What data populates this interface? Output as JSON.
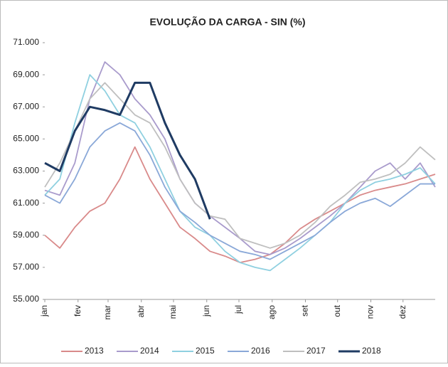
{
  "chart_data": {
    "type": "line",
    "title": "EVOLUÇÃO DA CARGA - SIN (%)",
    "x": [
      1,
      15,
      29,
      43,
      57,
      71,
      85,
      99,
      113,
      127,
      141,
      155,
      169,
      183,
      197,
      211,
      225,
      239,
      253,
      267,
      281,
      295,
      309,
      323,
      337,
      351,
      365
    ],
    "xlim": [
      1,
      365
    ],
    "xticks": [
      {
        "value": 1,
        "label": "jan"
      },
      {
        "value": 32,
        "label": "fev"
      },
      {
        "value": 60,
        "label": "mar"
      },
      {
        "value": 91,
        "label": "abr"
      },
      {
        "value": 121,
        "label": "mai"
      },
      {
        "value": 152,
        "label": "jun"
      },
      {
        "value": 182,
        "label": "jul"
      },
      {
        "value": 213,
        "label": "ago"
      },
      {
        "value": 244,
        "label": "set"
      },
      {
        "value": 274,
        "label": "out"
      },
      {
        "value": 305,
        "label": "nov"
      },
      {
        "value": 335,
        "label": "dez"
      }
    ],
    "ylim": [
      55000,
      71000
    ],
    "yticks": [
      {
        "value": 55000,
        "label": "55.000"
      },
      {
        "value": 57000,
        "label": "57.000"
      },
      {
        "value": 59000,
        "label": "59.000"
      },
      {
        "value": 61000,
        "label": "61.000"
      },
      {
        "value": 63000,
        "label": "63.000"
      },
      {
        "value": 65000,
        "label": "65.000"
      },
      {
        "value": 67000,
        "label": "67.000"
      },
      {
        "value": 69000,
        "label": "69.000"
      },
      {
        "value": 71000,
        "label": "71.000"
      }
    ],
    "legend": "bottom",
    "series": [
      {
        "name": "2013",
        "color": "#d98a8a",
        "values": [
          59000,
          58200,
          59500,
          60500,
          61000,
          62500,
          64500,
          62500,
          61000,
          59500,
          58800,
          58000,
          57700,
          57300,
          57500,
          57800,
          58500,
          59400,
          60000,
          60500,
          61000,
          61500,
          61800,
          62000,
          62200,
          62500,
          62800
        ]
      },
      {
        "name": "2014",
        "color": "#a99bcc",
        "values": [
          61800,
          61500,
          63500,
          67500,
          69800,
          69000,
          67500,
          66500,
          65000,
          62500,
          61000,
          60200,
          59500,
          58800,
          58000,
          57800,
          58200,
          58800,
          59500,
          60200,
          61000,
          62000,
          63000,
          63500,
          62500,
          63500,
          62000
        ]
      },
      {
        "name": "2015",
        "color": "#8fd0e0",
        "values": [
          61500,
          62500,
          66000,
          69000,
          68000,
          66500,
          66000,
          64500,
          62500,
          60500,
          59500,
          59000,
          58000,
          57300,
          57000,
          56800,
          57500,
          58200,
          59000,
          59800,
          61000,
          61800,
          62300,
          62500,
          62800,
          63200,
          62200
        ]
      },
      {
        "name": "2016",
        "color": "#8aa8d8",
        "values": [
          61500,
          61000,
          62500,
          64500,
          65500,
          66000,
          65500,
          64000,
          62000,
          60500,
          59800,
          59000,
          58500,
          58000,
          57800,
          57500,
          58000,
          58500,
          59000,
          59800,
          60500,
          61000,
          61300,
          60800,
          61500,
          62200,
          62200
        ]
      },
      {
        "name": "2017",
        "color": "#bfbfbf",
        "values": [
          62000,
          63500,
          65500,
          67500,
          68500,
          67500,
          66500,
          66000,
          64500,
          62500,
          61000,
          60200,
          60000,
          58800,
          58500,
          58200,
          58500,
          59000,
          59800,
          60800,
          61500,
          62300,
          62500,
          62800,
          63500,
          64500,
          63700
        ]
      },
      {
        "name": "2018",
        "color": "#1f3b63",
        "values": [
          63500,
          63000,
          65500,
          67000,
          66800,
          66500,
          68500,
          68500,
          66000,
          64000,
          62500,
          60000,
          null,
          null,
          null,
          null,
          null,
          null,
          null,
          null,
          null,
          null,
          null,
          null,
          null,
          null,
          null
        ]
      }
    ]
  }
}
